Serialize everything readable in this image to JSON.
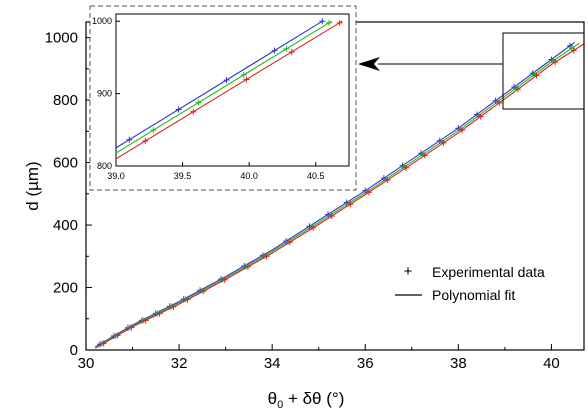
{
  "chart_data": [
    {
      "type": "line",
      "xlabel": "θ₀ + δθ (°)",
      "xlabel_parts": {
        "theta": "θ",
        "sub": "0",
        "rest": " + δθ (°)"
      },
      "ylabel": "d (µm)",
      "xlim": [
        30,
        40.7
      ],
      "ylim": [
        0,
        1050
      ],
      "xticks": [
        30,
        32,
        34,
        36,
        38,
        40
      ],
      "yticks": [
        0,
        200,
        400,
        600,
        800,
        1000
      ],
      "grid": false,
      "legend_position": "bottom-right",
      "legend": [
        {
          "label": "Experimental data",
          "marker": "+"
        },
        {
          "label": "Polynomial fit",
          "marker": "line"
        }
      ],
      "series": [
        {
          "color": "#3333cc",
          "x": [
            30.2,
            31.0,
            32.0,
            33.0,
            34.0,
            35.0,
            36.0,
            37.0,
            38.0,
            39.0,
            40.0,
            40.5
          ],
          "y": [
            10,
            80,
            155,
            235,
            320,
            415,
            510,
            610,
            710,
            820,
            930,
            985
          ]
        },
        {
          "color": "#22bb22",
          "x": [
            30.2,
            31.0,
            32.0,
            33.0,
            34.0,
            35.0,
            36.0,
            37.0,
            38.0,
            39.0,
            40.0,
            40.6
          ],
          "y": [
            8,
            77,
            151,
            230,
            315,
            408,
            503,
            602,
            702,
            812,
            922,
            982
          ]
        },
        {
          "color": "#dd2222",
          "x": [
            30.2,
            31.0,
            32.0,
            33.0,
            34.0,
            35.0,
            36.0,
            37.0,
            38.0,
            39.0,
            40.0,
            40.7
          ],
          "y": [
            6,
            74,
            147,
            226,
            310,
            402,
            497,
            595,
            695,
            804,
            914,
            980
          ]
        }
      ],
      "markers_x": [
        30.3,
        30.6,
        30.9,
        31.2,
        31.5,
        31.8,
        32.1,
        32.45,
        32.9,
        33.4,
        33.8,
        34.3,
        34.8,
        35.2,
        35.6,
        36.0,
        36.4,
        36.8,
        37.2,
        37.6,
        38.0,
        38.4,
        38.8,
        39.2,
        39.6,
        40.0,
        40.4
      ]
    },
    {
      "type": "line",
      "role": "inset",
      "xlim": [
        39.0,
        40.75
      ],
      "ylim": [
        800,
        1010
      ],
      "xticks": [
        "39.0",
        "39.5",
        "40.0",
        "40.5"
      ],
      "yticks": [
        "800",
        "900",
        "1000"
      ],
      "series": [
        {
          "color": "#3333cc",
          "x": [
            39.0,
            40.55
          ],
          "y": [
            825,
            1000
          ],
          "markers_x": [
            39.1,
            39.47,
            39.83,
            40.19,
            40.55
          ]
        },
        {
          "color": "#22bb22",
          "x": [
            39.0,
            40.62
          ],
          "y": [
            818,
            1000
          ],
          "markers_x": [
            39.28,
            39.62,
            39.96,
            40.28,
            40.6
          ]
        },
        {
          "color": "#dd2222",
          "x": [
            39.0,
            40.7
          ],
          "y": [
            810,
            1000
          ],
          "markers_x": [
            39.22,
            39.58,
            39.98,
            40.32,
            40.68
          ]
        }
      ]
    }
  ]
}
